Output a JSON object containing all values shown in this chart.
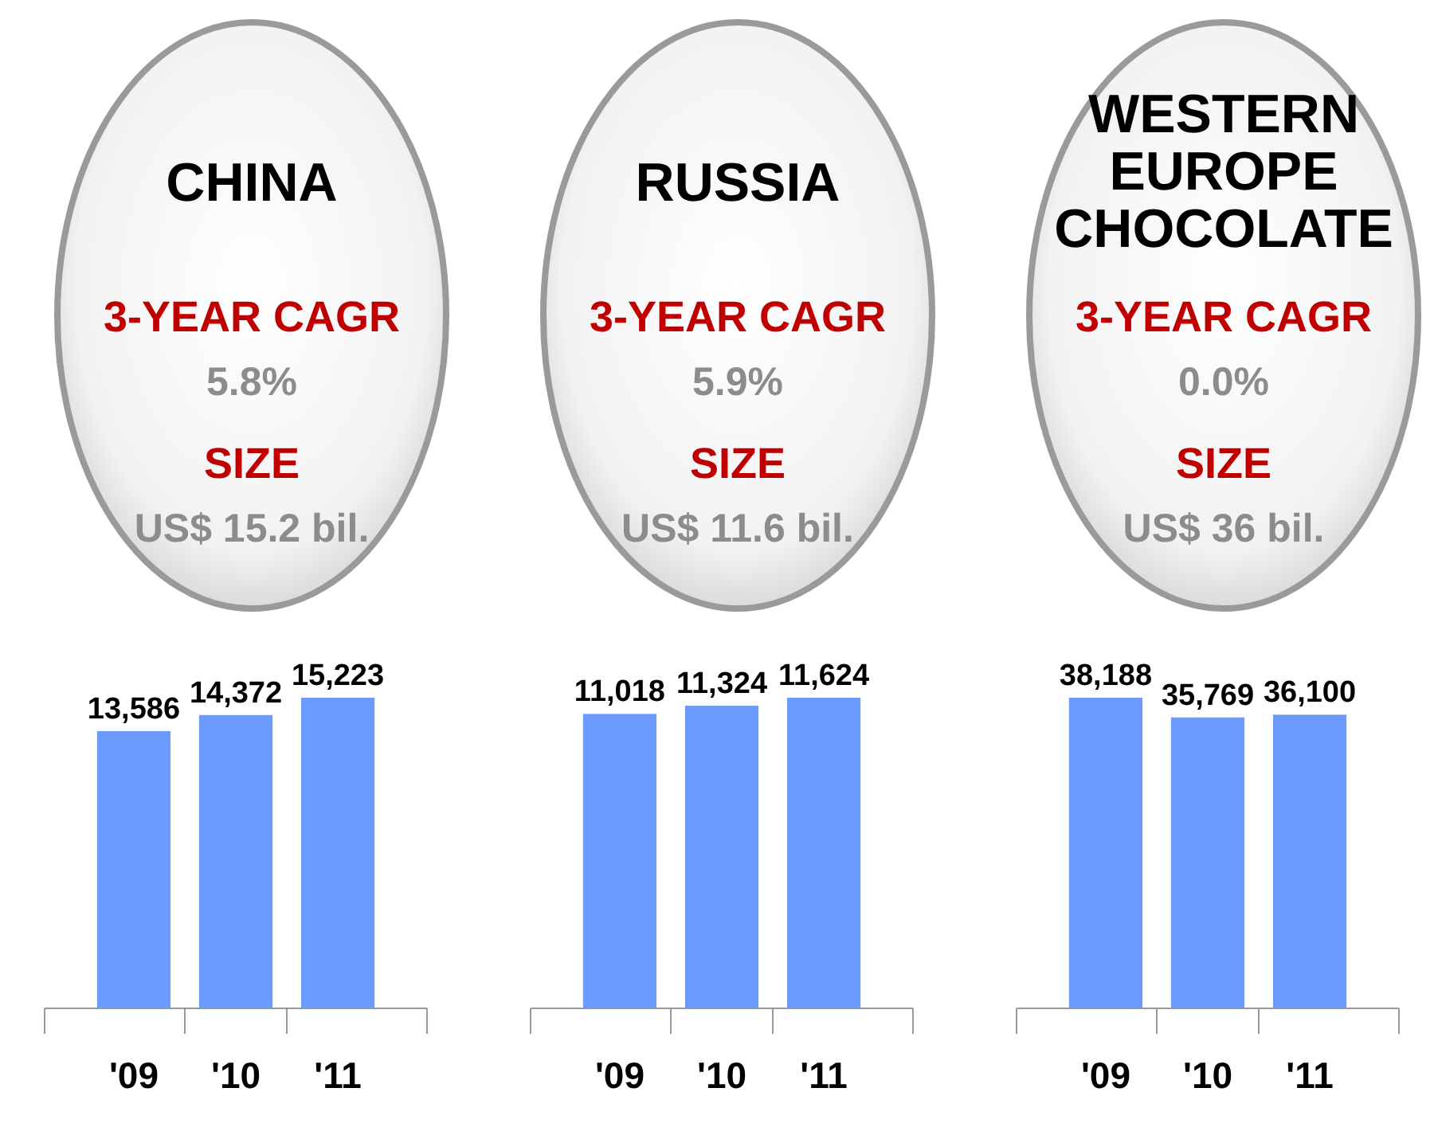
{
  "chart_data": [
    {
      "type": "bar",
      "title": "CHINA",
      "annotations": [
        "3-YEAR CAGR",
        "5.8%",
        "SIZE",
        "US$ 15.2 bil."
      ],
      "categories": [
        "'09",
        "'10",
        "'11"
      ],
      "values": [
        13586,
        14372,
        15223
      ],
      "value_labels": [
        "13,586",
        "14,372",
        "15,223"
      ],
      "color": "#6b9bff"
    },
    {
      "type": "bar",
      "title": "RUSSIA",
      "annotations": [
        "3-YEAR CAGR",
        "5.9%",
        "SIZE",
        "US$ 11.6 bil."
      ],
      "categories": [
        "'09",
        "'10",
        "'11"
      ],
      "values": [
        11018,
        11324,
        11624
      ],
      "value_labels": [
        "11,018",
        "11,324",
        "11,624"
      ],
      "color": "#6b9bff"
    },
    {
      "type": "bar",
      "title": "WESTERN EUROPE CHOCOLATE",
      "annotations": [
        "3-YEAR CAGR",
        "0.0%",
        "SIZE",
        "US$ 36 bil."
      ],
      "categories": [
        "'09",
        "'10",
        "'11"
      ],
      "values": [
        38188,
        35769,
        36100
      ],
      "value_labels": [
        "38,188",
        "35,769",
        "36,100"
      ],
      "color": "#6b9bff"
    }
  ]
}
